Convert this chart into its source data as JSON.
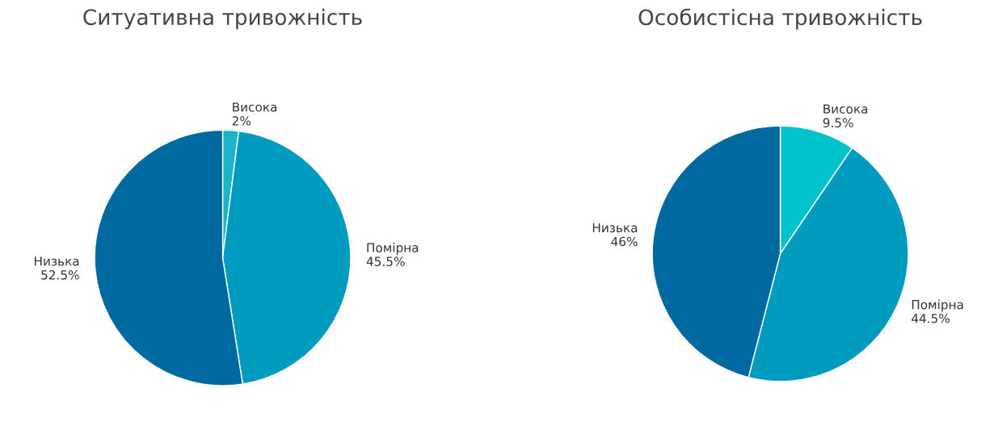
{
  "chart_data": [
    {
      "type": "pie",
      "title": "Ситуативна тривожність",
      "categories": [
        "Висока",
        "Помірна",
        "Низька"
      ],
      "values": [
        2,
        45.5,
        52.5
      ],
      "value_labels": [
        "2%",
        "45.5%",
        "52.5%"
      ],
      "colors": [
        "#1bb3c8",
        "#009bbf",
        "#0069a0"
      ],
      "legend": false
    },
    {
      "type": "pie",
      "title": "Особистісна тривожність",
      "categories": [
        "Висока",
        "Помірна",
        "Низька"
      ],
      "values": [
        9.5,
        44.5,
        46
      ],
      "value_labels": [
        "9.5%",
        "44.5%",
        "46%"
      ],
      "colors": [
        "#00c3cc",
        "#009bbf",
        "#0069a0"
      ],
      "legend": false
    }
  ]
}
